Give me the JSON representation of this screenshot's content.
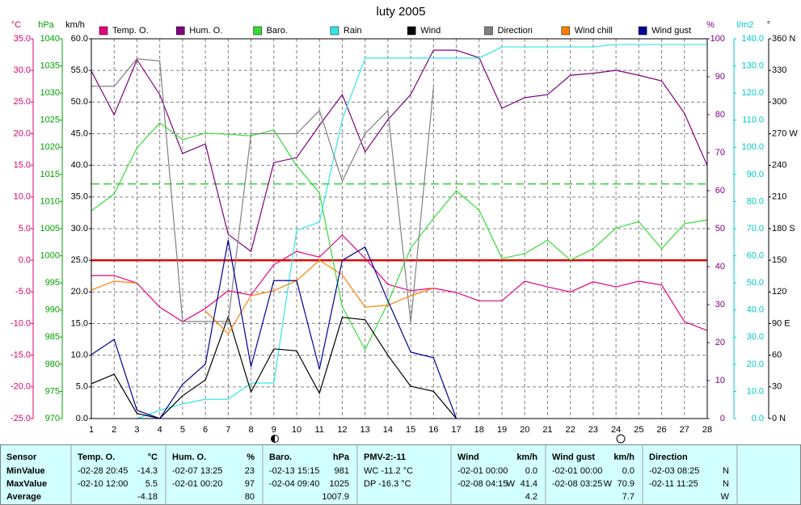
{
  "chart_data": {
    "type": "line",
    "title": "luty 2005",
    "x": [
      1,
      2,
      3,
      4,
      5,
      6,
      7,
      8,
      9,
      10,
      11,
      12,
      13,
      14,
      15,
      16,
      17,
      18,
      19,
      20,
      21,
      22,
      23,
      24,
      25,
      26,
      27,
      28
    ],
    "xlim": [
      1,
      28
    ],
    "grid": true,
    "grid_axis": "km/h",
    "axes": [
      {
        "label": "°C",
        "color": "#e0006c",
        "lim": [
          -25,
          35
        ],
        "ticks": [
          {
            "value": 35,
            "label": "35.0"
          },
          {
            "value": 30,
            "label": "30.0"
          },
          {
            "value": 25,
            "label": "25.0"
          },
          {
            "value": 20,
            "label": "20.0"
          },
          {
            "value": 15,
            "label": "15.0"
          },
          {
            "value": 10,
            "label": "10.0"
          },
          {
            "value": 5,
            "label": "5.0"
          },
          {
            "value": 0,
            "label": "0.0"
          },
          {
            "value": -5,
            "label": "-5.0"
          },
          {
            "value": -10,
            "label": "-10.0"
          },
          {
            "value": -15,
            "label": "-15.0"
          },
          {
            "value": -20,
            "label": "-20.0"
          },
          {
            "value": -25,
            "label": "-25.0"
          }
        ]
      },
      {
        "label": "hPa",
        "color": "#00a000",
        "lim": [
          970,
          1040
        ],
        "ticks": [
          1040,
          1035,
          1030,
          1025,
          1020,
          1015,
          1010,
          1005,
          1000,
          995,
          990,
          985,
          980,
          975,
          970
        ]
      },
      {
        "label": "km/h",
        "color": "#000000",
        "lim": [
          0,
          60
        ],
        "ticks": [
          {
            "value": 60,
            "label": "60.0"
          },
          {
            "value": 55,
            "label": "55.0"
          },
          {
            "value": 50,
            "label": "50.0"
          },
          {
            "value": 45,
            "label": "45.0"
          },
          {
            "value": 40,
            "label": "40.0"
          },
          {
            "value": 35,
            "label": "35.0"
          },
          {
            "value": 30,
            "label": "30.0"
          },
          {
            "value": 25,
            "label": "25.0"
          },
          {
            "value": 20,
            "label": "20.0"
          },
          {
            "value": 15,
            "label": "15.0"
          },
          {
            "value": 10,
            "label": "10.0"
          },
          {
            "value": 5,
            "label": "5.0"
          },
          {
            "value": 0,
            "label": "0.0"
          }
        ]
      },
      {
        "label": "%",
        "color": "#800080",
        "lim": [
          0,
          100
        ],
        "ticks": [
          100,
          90,
          80,
          70,
          60,
          50,
          40,
          30,
          20,
          10,
          0
        ]
      },
      {
        "label": "l/m2",
        "color": "#00c8c8",
        "lim": [
          0,
          140
        ],
        "ticks": [
          {
            "value": 140,
            "label": "140.0"
          },
          {
            "value": 130,
            "label": "130.0"
          },
          {
            "value": 120,
            "label": "120.0"
          },
          {
            "value": 110,
            "label": "110.0"
          },
          {
            "value": 100,
            "label": "100.0"
          },
          {
            "value": 90,
            "label": "90.0"
          },
          {
            "value": 80,
            "label": "80.0"
          },
          {
            "value": 70,
            "label": "70.0"
          },
          {
            "value": 60,
            "label": "60.0"
          },
          {
            "value": 50,
            "label": "50.0"
          },
          {
            "value": 40,
            "label": "40.0"
          },
          {
            "value": 30,
            "label": "30.0"
          },
          {
            "value": 20,
            "label": "20.0"
          },
          {
            "value": 10,
            "label": "10.0"
          },
          {
            "value": 0,
            "label": "0.0"
          }
        ]
      },
      {
        "label": "°",
        "color": "#000000",
        "lim": [
          0,
          360
        ],
        "ticks": [
          {
            "value": 360,
            "label": "360 N"
          },
          330,
          300,
          {
            "value": 270,
            "label": "270 W"
          },
          240,
          210,
          {
            "value": 180,
            "label": "180 S"
          },
          150,
          120,
          {
            "value": 90,
            "label": "90 E"
          },
          60,
          30,
          {
            "value": 0,
            "label": "0 N"
          }
        ]
      }
    ],
    "reference_lines": [
      {
        "axis": "°C",
        "value": 0,
        "color": "#e00000",
        "dashed": false
      },
      {
        "axis": "hPa",
        "value": 1013.25,
        "color": "#33cc33",
        "dashed": true
      }
    ],
    "series": [
      {
        "name": "Temp. O.",
        "color": "#e6007e",
        "axis": "°C",
        "values": [
          -2.4,
          -2.4,
          -3.6,
          -7.4,
          -9.7,
          -7.6,
          -4.8,
          -5.5,
          -0.7,
          1.4,
          0.5,
          4.0,
          0.3,
          -3.8,
          -4.8,
          -4.4,
          -5.1,
          -6.4,
          -6.4,
          -3.3,
          -4.2,
          -5.0,
          -3.4,
          -4.2,
          -3.3,
          -3.9,
          -9.7,
          -11.1
        ]
      },
      {
        "name": "Hum. O.",
        "color": "#800080",
        "axis": "%",
        "values": [
          91.5,
          80,
          94.5,
          85.3,
          69.8,
          72.3,
          48.5,
          44,
          67.4,
          68.7,
          77.2,
          85.3,
          70.2,
          78.7,
          85.3,
          97,
          97,
          95,
          81.7,
          84.5,
          85.3,
          90.4,
          90.9,
          91.7,
          90.4,
          88.9,
          80.4,
          66.6
        ]
      },
      {
        "name": "Baro.",
        "color": "#33dd33",
        "axis": "hPa",
        "values": [
          1008.3,
          1011.4,
          1019.9,
          1024.5,
          1021.4,
          1022.6,
          1022.4,
          1022.1,
          1023.2,
          1016.6,
          1011.6,
          990.6,
          982.7,
          991.3,
          1001.4,
          1006.9,
          1012.0,
          1008.4,
          999.5,
          1000.4,
          1002.9,
          999.2,
          1001.3,
          1005.1,
          1006.3,
          1001.3,
          1005.9,
          1006.6
        ]
      },
      {
        "name": "Rain",
        "color": "#33e6e6",
        "axis": "l/m2",
        "values": [
          null,
          null,
          0,
          3,
          5.4,
          7.1,
          7.1,
          13.1,
          13.1,
          69.4,
          72.4,
          110.2,
          132.9,
          132.9,
          132.9,
          132.9,
          132.9,
          132.9,
          137,
          137,
          137,
          137,
          137,
          137.9,
          137.9,
          137.9,
          137.9,
          137.9
        ]
      },
      {
        "name": "Wind",
        "color": "#000000",
        "axis": "km/h",
        "values": [
          5.5,
          7.0,
          0.8,
          0,
          3.6,
          6.1,
          16.1,
          4.2,
          11.0,
          10.7,
          4.0,
          16.0,
          15.6,
          10.0,
          5.1,
          4.3,
          0,
          null,
          null,
          null,
          null,
          null,
          null,
          null,
          null,
          null,
          null,
          null
        ]
      },
      {
        "name": "Direction",
        "color": "#808080",
        "axis": "°",
        "values": [
          315,
          315,
          341,
          339,
          92,
          92,
          92,
          270,
          270,
          270,
          292,
          225,
          270,
          292,
          91,
          314,
          null,
          null,
          null,
          null,
          null,
          null,
          null,
          null,
          null,
          null,
          null,
          null
        ]
      },
      {
        "name": "Wind chill",
        "color": "#ff8000",
        "axis": "°C",
        "values": [
          -4.7,
          -3.3,
          -3.6,
          null,
          null,
          -8.0,
          -11.6,
          -5.6,
          -4.8,
          -3.2,
          0.0,
          -2.3,
          -7.4,
          -7.1,
          -5.6,
          -4.4,
          null,
          null,
          null,
          null,
          null,
          null,
          null,
          null,
          null,
          null,
          null,
          null
        ]
      },
      {
        "name": "Wind gust",
        "color": "#000099",
        "axis": "km/h",
        "values": [
          10.1,
          12.5,
          1.3,
          0,
          5.4,
          8.6,
          28.2,
          8.2,
          21.8,
          21.8,
          7.8,
          25.0,
          27.1,
          18.6,
          10.5,
          9.6,
          0,
          null,
          null,
          null,
          null,
          null,
          null,
          null,
          null,
          null,
          null,
          null
        ]
      }
    ]
  },
  "table": {
    "header": "Sensor",
    "row_labels": [
      "MinValue",
      "MaxValue",
      "Average"
    ],
    "columns": [
      {
        "header": "Temp. O.",
        "unit": "°C",
        "rows": [
          {
            "time": "-02-28 20:45",
            "value": "-14.3"
          },
          {
            "time": "-02-10 12:00",
            "value": "5.5"
          },
          {
            "value": "-4.18"
          }
        ]
      },
      {
        "header": "Hum. O.",
        "unit": "%",
        "rows": [
          {
            "time": "-02-07 13:25",
            "value": "23"
          },
          {
            "time": "-02-01 00:20",
            "value": "97"
          },
          {
            "value": "80"
          }
        ]
      },
      {
        "header": "Baro.",
        "unit": "hPa",
        "rows": [
          {
            "time": "-02-13 15:15",
            "value": "981"
          },
          {
            "time": "-02-04 09:40",
            "value": "1025"
          },
          {
            "value": "1007.9"
          }
        ]
      },
      {
        "header": "PMV-2:-11",
        "rows": [
          {
            "text": "WC -11.2 °C"
          },
          {
            "text": "DP -16.3 °C"
          }
        ]
      },
      {
        "header": "Wind",
        "unit": "km/h",
        "rows": [
          {
            "time": "-02-01 00:00",
            "value": "0.0"
          },
          {
            "time": "-02-08 04:15",
            "dir": "W",
            "value": "41.4"
          },
          {
            "value": "4.2"
          }
        ]
      },
      {
        "header": "Wind gust",
        "unit": "km/h",
        "rows": [
          {
            "time": "-02-01 00:00",
            "value": "0.0"
          },
          {
            "time": "-02-08 03:25",
            "dir": "W",
            "value": "70.9"
          },
          {
            "value": "7.7"
          }
        ]
      },
      {
        "header": "Direction",
        "rows": [
          {
            "time": "-02-03 08:25",
            "value": "N"
          },
          {
            "time": "-02-11 11:25",
            "value": "N"
          },
          {
            "value": "W"
          }
        ]
      }
    ]
  }
}
